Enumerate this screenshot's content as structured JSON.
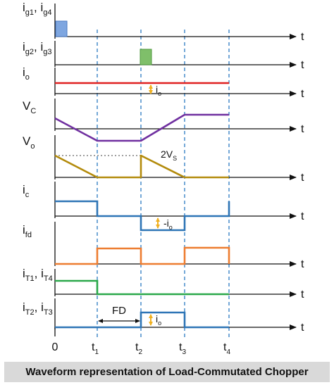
{
  "caption": "Waveform representation of Load-Commutated Chopper",
  "time_axis_label": "t",
  "origin_label": "0",
  "instant_labels": [
    {
      "main": "t",
      "sub": "1"
    },
    {
      "main": "t",
      "sub": "2"
    },
    {
      "main": "t",
      "sub": "3"
    },
    {
      "main": "t",
      "sub": "4"
    }
  ],
  "signals": [
    {
      "key": "ig14",
      "parts": [
        {
          "t": "i",
          "s": "g1"
        },
        {
          "t": ", i",
          "s": "g4"
        }
      ]
    },
    {
      "key": "ig23",
      "parts": [
        {
          "t": "i",
          "s": "g2"
        },
        {
          "t": ", i",
          "s": "g3"
        }
      ]
    },
    {
      "key": "io",
      "parts": [
        {
          "t": "i",
          "s": "o"
        }
      ]
    },
    {
      "key": "vc",
      "parts": [
        {
          "t": "V",
          "s": "C"
        }
      ]
    },
    {
      "key": "vo",
      "parts": [
        {
          "t": "V",
          "s": "o"
        }
      ]
    },
    {
      "key": "ic",
      "parts": [
        {
          "t": "i",
          "s": "c"
        }
      ]
    },
    {
      "key": "ifd",
      "parts": [
        {
          "t": "i",
          "s": "fd"
        }
      ]
    },
    {
      "key": "it14",
      "parts": [
        {
          "t": "i",
          "s": "T1"
        },
        {
          "t": ", i",
          "s": "T4"
        }
      ]
    },
    {
      "key": "it23",
      "parts": [
        {
          "t": "i",
          "s": "T2"
        },
        {
          "t": ", i",
          "s": "T3"
        }
      ]
    }
  ],
  "annotations": {
    "io_mark": {
      "main": "i",
      "sub": "o"
    },
    "vs2_mark": {
      "main": "2V",
      "sub": "S"
    },
    "neg_io_mark": {
      "main": "-i",
      "sub": "o"
    },
    "fd_label": "FD",
    "it23_io_mark": {
      "main": "i",
      "sub": "o"
    }
  },
  "colors": {
    "axis": "#111111",
    "instant_marker": "#3a83c6",
    "gate_pulse_1": "#7ea6e0",
    "gate_pulse_2": "#7fbf6a",
    "load_current": "#e02020",
    "capacitor_voltage": "#7030a0",
    "output_voltage": "#b38b0c",
    "capacitor_current": "#2e75b6",
    "freewheel_current": "#ed7d31",
    "thyristor_pair_1": "#2aa84a",
    "thyristor_pair_2": "#2e75b6",
    "marker_arrow": "#f0b020",
    "caption_bg": "#d9d9d9"
  }
}
